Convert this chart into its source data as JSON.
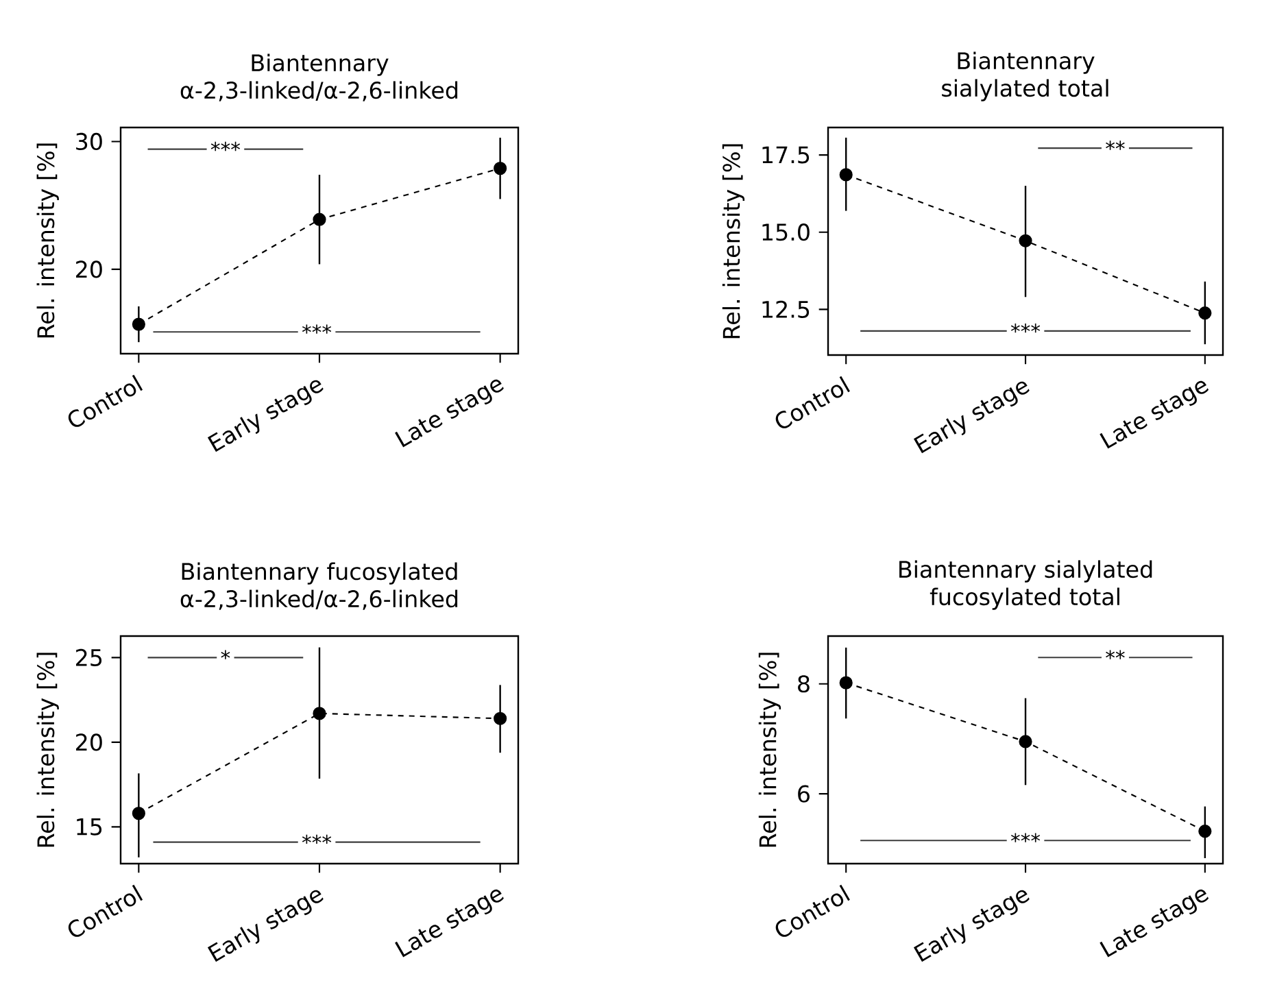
{
  "chart_data": [
    {
      "type": "line",
      "title": "Biantennary",
      "subtitle": "α-2,3-linked/α-2,6-linked",
      "ylabel": "Rel. intensity [%]",
      "categories": [
        "Control",
        "Early stage",
        "Late stage"
      ],
      "series": [
        {
          "color": "#000000",
          "values": [
            15.7,
            23.9,
            27.9
          ],
          "errors": [
            [
              14.3,
              17.1
            ],
            [
              20.4,
              27.4
            ],
            [
              25.5,
              30.3
            ]
          ]
        }
      ],
      "ylim": [
        13.4,
        31.1
      ],
      "yticks": [
        20,
        30
      ],
      "marker": "circle",
      "line_style": "dashed",
      "annotations": [
        {
          "text": "***",
          "y": 29.4
        },
        {
          "text": "***",
          "y": 15.1
        }
      ]
    },
    {
      "type": "line",
      "title": "Biantennary",
      "subtitle": "sialylated total",
      "ylabel": "Rel. intensity [%]",
      "categories": [
        "Control",
        "Early stage",
        "Late stage"
      ],
      "series": [
        {
          "color": "#000000",
          "values": [
            16.86,
            14.72,
            12.38
          ],
          "errors": [
            [
              15.69,
              18.06
            ],
            [
              12.9,
              16.5
            ],
            [
              11.37,
              13.4
            ]
          ]
        }
      ],
      "ylim": [
        11.02,
        18.39
      ],
      "yticks": [
        12.5,
        {
          "value": 15,
          "label": "15.0"
        },
        17.5
      ],
      "marker": "circle",
      "line_style": "dashed",
      "annotations": [
        {
          "text": "**",
          "y": 17.72
        },
        {
          "text": "***",
          "y": 11.8
        }
      ]
    },
    {
      "type": "line",
      "title": "Biantennary fucosylated",
      "subtitle": "α-2,3-linked/α-2,6-linked",
      "ylabel": "Rel. intensity [%]",
      "categories": [
        "Control",
        "Early stage",
        "Late stage"
      ],
      "series": [
        {
          "color": "#000000",
          "values": [
            15.8,
            21.7,
            21.4
          ],
          "errors": [
            [
              13.2,
              18.16
            ],
            [
              17.85,
              25.6
            ],
            [
              19.38,
              23.38
            ]
          ]
        }
      ],
      "ylim": [
        12.83,
        26.27
      ],
      "yticks": [
        15,
        20,
        25
      ],
      "marker": "circle",
      "line_style": "dashed",
      "annotations": [
        {
          "text": "*",
          "y": 25.0
        },
        {
          "text": "***",
          "y": 14.1
        }
      ]
    },
    {
      "type": "line",
      "title": "Biantennary sialylated",
      "subtitle": "fucosylated total",
      "ylabel": "Rel. intensity [%]",
      "categories": [
        "Control",
        "Early stage",
        "Late stage"
      ],
      "series": [
        {
          "color": "#000000",
          "values": [
            8.02,
            6.95,
            5.32
          ],
          "errors": [
            [
              7.37,
              8.66
            ],
            [
              6.16,
              7.74
            ],
            [
              4.83,
              5.77
            ]
          ]
        }
      ],
      "ylim": [
        4.73,
        8.87
      ],
      "yticks": [
        6,
        8
      ],
      "marker": "circle",
      "line_style": "dashed",
      "annotations": [
        {
          "text": "**",
          "y": 8.48
        },
        {
          "text": "***",
          "y": 5.15
        }
      ]
    }
  ]
}
